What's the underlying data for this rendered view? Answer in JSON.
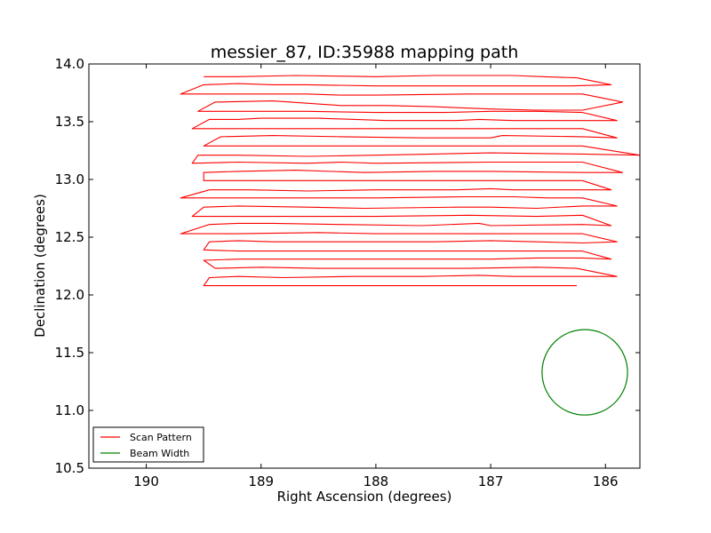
{
  "chart_data": {
    "type": "line",
    "title": "messier_87, ID:35988 mapping path",
    "xlabel": "Right Ascension (degrees)",
    "ylabel": "Declination (degrees)",
    "xlim": [
      190.5,
      185.7
    ],
    "ylim": [
      10.5,
      14.0
    ],
    "xticks": [
      190,
      189,
      188,
      187,
      186
    ],
    "xtick_labels": [
      "190",
      "189",
      "188",
      "187",
      "186"
    ],
    "yticks": [
      10.5,
      11.0,
      11.5,
      12.0,
      12.5,
      13.0,
      13.5,
      14.0
    ],
    "ytick_labels": [
      "10.5",
      "11.0",
      "11.5",
      "12.0",
      "12.5",
      "13.0",
      "13.5",
      "14.0"
    ],
    "grid": false,
    "legend_position": "lower-left",
    "series": [
      {
        "name": "Scan Pattern",
        "color": "#ff0000",
        "style": "solid",
        "x": [
          189.5,
          189.2,
          188.7,
          188.0,
          187.5,
          187.2,
          186.8,
          186.55,
          186.25,
          185.95,
          186.3,
          187.0,
          187.1,
          187.2,
          188.0,
          188.6,
          188.9,
          189.2,
          189.5,
          189.7,
          189.2,
          188.6,
          188.3,
          188.0,
          187.2,
          186.8,
          186.5,
          186.2,
          185.85,
          186.2,
          186.6,
          187.0,
          187.5,
          187.9,
          188.3,
          188.9,
          189.4,
          189.55,
          189.2,
          188.6,
          188.0,
          187.4,
          187.0,
          186.6,
          186.2,
          185.9,
          186.2,
          186.8,
          187.1,
          187.3,
          187.9,
          188.5,
          189.0,
          189.2,
          189.45,
          189.6,
          189.2,
          188.6,
          188.1,
          187.2,
          186.8,
          186.2,
          185.9,
          186.2,
          186.9,
          187.0,
          187.1,
          187.6,
          188.3,
          188.9,
          189.35,
          189.5,
          189.2,
          188.7,
          188.0,
          187.6,
          187.0,
          186.5,
          186.2,
          185.7,
          186.2,
          187.0,
          187.5,
          188.0,
          188.6,
          189.2,
          189.55,
          189.6,
          189.2,
          188.6,
          188.3,
          188.0,
          187.0,
          186.8,
          186.2,
          185.85,
          186.2,
          187.0,
          187.2,
          187.5,
          188.1,
          188.7,
          189.2,
          189.5,
          189.5,
          189.2,
          188.5,
          188.0,
          187.2,
          186.6,
          186.2,
          185.95,
          186.2,
          186.8,
          187.0,
          187.3,
          188.0,
          188.6,
          189.1,
          189.45,
          189.7,
          189.2,
          188.6,
          188.0,
          187.2,
          186.8,
          186.5,
          186.2,
          185.9,
          186.2,
          186.6,
          187.0,
          187.3,
          188.1,
          188.6,
          189.2,
          189.5,
          189.6,
          189.2,
          188.6,
          188.0,
          187.2,
          186.6,
          186.2,
          185.95,
          186.2,
          187.0,
          187.1,
          187.6,
          188.3,
          188.9,
          189.2,
          189.45,
          189.7,
          189.2,
          188.5,
          188.0,
          187.2,
          186.8,
          186.2,
          185.9,
          186.2,
          186.6,
          187.0,
          187.5,
          188.3,
          188.9,
          189.2,
          189.45,
          189.5,
          189.2,
          188.6,
          188.0,
          187.2,
          186.6,
          186.2,
          185.95,
          186.2,
          186.6,
          187.0,
          187.6,
          188.2,
          188.9,
          189.2,
          189.5,
          189.4,
          189.0,
          188.5,
          188.0,
          187.2,
          186.6,
          186.25,
          185.9,
          186.2,
          186.8,
          187.1,
          187.6,
          188.2,
          188.8,
          189.2,
          189.45,
          189.5,
          189.0,
          188.5,
          188.0,
          187.5,
          186.9,
          186.55,
          186.25
        ],
        "y": [
          13.89,
          13.89,
          13.9,
          13.89,
          13.9,
          13.9,
          13.9,
          13.89,
          13.88,
          13.82,
          13.81,
          13.81,
          13.81,
          13.81,
          13.81,
          13.82,
          13.82,
          13.83,
          13.82,
          13.74,
          13.74,
          13.74,
          13.73,
          13.73,
          13.74,
          13.74,
          13.74,
          13.74,
          13.67,
          13.6,
          13.6,
          13.61,
          13.63,
          13.64,
          13.64,
          13.68,
          13.67,
          13.59,
          13.59,
          13.59,
          13.58,
          13.58,
          13.59,
          13.59,
          13.58,
          13.51,
          13.51,
          13.51,
          13.52,
          13.51,
          13.51,
          13.53,
          13.53,
          13.52,
          13.52,
          13.44,
          13.44,
          13.44,
          13.44,
          13.44,
          13.44,
          13.44,
          13.36,
          13.37,
          13.38,
          13.36,
          13.36,
          13.36,
          13.37,
          13.38,
          13.37,
          13.29,
          13.29,
          13.29,
          13.29,
          13.29,
          13.29,
          13.29,
          13.29,
          13.21,
          13.22,
          13.23,
          13.22,
          13.21,
          13.2,
          13.21,
          13.21,
          13.14,
          13.15,
          13.14,
          13.15,
          13.14,
          13.15,
          13.15,
          13.15,
          13.06,
          13.06,
          13.07,
          13.07,
          13.07,
          13.06,
          13.08,
          13.07,
          13.06,
          12.99,
          12.99,
          12.99,
          12.99,
          12.99,
          12.99,
          12.99,
          12.91,
          12.91,
          12.91,
          12.92,
          12.91,
          12.91,
          12.9,
          12.91,
          12.91,
          12.84,
          12.84,
          12.84,
          12.84,
          12.85,
          12.85,
          12.84,
          12.84,
          12.77,
          12.77,
          12.75,
          12.76,
          12.76,
          12.75,
          12.76,
          12.77,
          12.76,
          12.68,
          12.68,
          12.68,
          12.68,
          12.69,
          12.68,
          12.69,
          12.6,
          12.61,
          12.6,
          12.62,
          12.6,
          12.61,
          12.62,
          12.62,
          12.61,
          12.53,
          12.53,
          12.54,
          12.53,
          12.53,
          12.53,
          12.53,
          12.46,
          12.45,
          12.46,
          12.47,
          12.46,
          12.46,
          12.46,
          12.47,
          12.46,
          12.39,
          12.38,
          12.38,
          12.38,
          12.38,
          12.38,
          12.38,
          12.31,
          12.32,
          12.32,
          12.31,
          12.31,
          12.31,
          12.31,
          12.31,
          12.3,
          12.23,
          12.24,
          12.23,
          12.23,
          12.23,
          12.24,
          12.23,
          12.16,
          12.16,
          12.16,
          12.17,
          12.16,
          12.16,
          12.15,
          12.16,
          12.15,
          12.08,
          12.08,
          12.08,
          12.08,
          12.08,
          12.08,
          12.08,
          12.08
        ]
      },
      {
        "name": "Beam Width",
        "color": "#008000",
        "style": "solid",
        "shape": "circle",
        "center": [
          186.18,
          11.33
        ],
        "radius_y": 0.37
      }
    ]
  },
  "legend": {
    "items": [
      {
        "label": "Scan Pattern",
        "color": "#ff0000"
      },
      {
        "label": "Beam Width",
        "color": "#008000"
      }
    ]
  }
}
